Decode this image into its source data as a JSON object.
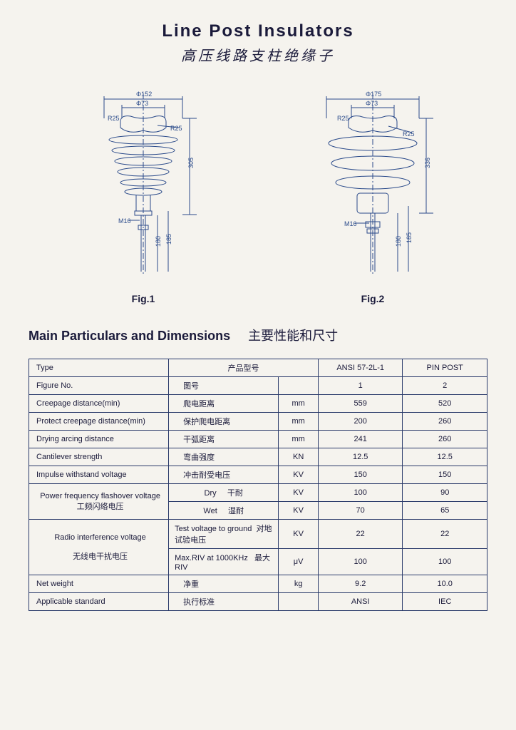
{
  "title": {
    "en": "Line Post Insulators",
    "cn": "高压线路支柱绝缘子"
  },
  "figures": {
    "fig1": {
      "caption": "Fig.1",
      "dims": {
        "d1": "Φ152",
        "d2": "Φ73",
        "r1": "R25",
        "r2": "R25",
        "h1": "305",
        "m": "M16",
        "h2": "180",
        "h3": "185"
      },
      "stroke": "#2a4a8a"
    },
    "fig2": {
      "caption": "Fig.2",
      "dims": {
        "d1": "Φ175",
        "d2": "Φ73",
        "r1": "R25",
        "r2": "R25",
        "h1": "336",
        "m": "M16",
        "h2": "180",
        "h3": "185"
      },
      "stroke": "#2a4a8a"
    }
  },
  "section": {
    "en": "Main Particulars and Dimensions",
    "cn": "主要性能和尺寸"
  },
  "table": {
    "header": {
      "type_en": "Type",
      "type_cn": "产品型号",
      "col1": "ANSI 57-2L-1",
      "col2": "PIN POST"
    },
    "rows": [
      {
        "en": "Figure No.",
        "cn": "图号",
        "unit": "",
        "v1": "1",
        "v2": "2"
      },
      {
        "en": "Creepage distance(min)",
        "cn": "爬电距离",
        "unit": "mm",
        "v1": "559",
        "v2": "520"
      },
      {
        "en": "Protect creepage distance(min)",
        "cn": "保护爬电距离",
        "unit": "mm",
        "v1": "200",
        "v2": "260"
      },
      {
        "en": "Drying arcing distance",
        "cn": "干弧距离",
        "unit": "mm",
        "v1": "241",
        "v2": "260"
      },
      {
        "en": "Cantilever strength",
        "cn": "弯曲强度",
        "unit": "KN",
        "v1": "12.5",
        "v2": "12.5"
      },
      {
        "en": "Impulse withstand voltage",
        "cn": "冲击耐受电压",
        "unit": "KV",
        "v1": "150",
        "v2": "150"
      }
    ],
    "pf": {
      "en": "Power frequency flashover voltage",
      "cn": "工频闪络电压",
      "dry_en": "Dry",
      "dry_cn": "干耐",
      "dry_unit": "KV",
      "dry_v1": "100",
      "dry_v2": "90",
      "wet_en": "Wet",
      "wet_cn": "湿耐",
      "wet_unit": "KV",
      "wet_v1": "70",
      "wet_v2": "65"
    },
    "riv": {
      "en": "Radio interference voltage",
      "cn": "无线电干扰电压",
      "tv_en": "Test voltage to ground",
      "tv_cn": "对地试验电压",
      "tv_unit": "KV",
      "tv_v1": "22",
      "tv_v2": "22",
      "max_en": "Max.RIV at 1000KHz",
      "max_cn": "最大RIV",
      "max_unit": "μV",
      "max_v1": "100",
      "max_v2": "100"
    },
    "tail": [
      {
        "en": "Net weight",
        "cn": "净重",
        "unit": "kg",
        "v1": "9.2",
        "v2": "10.0"
      },
      {
        "en": "Applicable standard",
        "cn": "执行标准",
        "unit": "",
        "v1": "ANSI",
        "v2": "IEC"
      }
    ]
  },
  "colors": {
    "line": "#2a3a6a",
    "diagram": "#2a4a8a",
    "bg": "#f5f3ee"
  }
}
